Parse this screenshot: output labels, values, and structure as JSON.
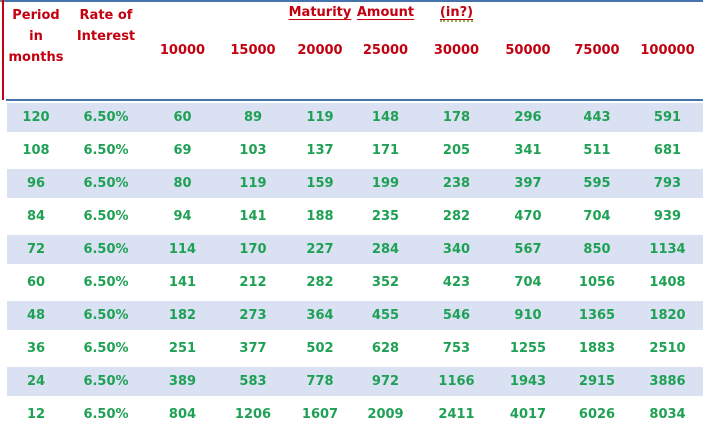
{
  "header": {
    "period_label": "Period\nin\nmonths",
    "rate_label": "Rate of\nInterest",
    "maturity_word": "Maturity",
    "amount_word": "Amount",
    "currency_word": "(in?)",
    "deposit_amounts": [
      "10000",
      "15000",
      "20000",
      "25000",
      "30000",
      "50000",
      "75000",
      "100000"
    ]
  },
  "colors": {
    "header_text_red": "#C30010",
    "data_text_green": "#1FA155",
    "stripe_blue": "#D9E1F2",
    "border_blue": "#4673AE"
  },
  "chart_data": {
    "type": "table",
    "title": "Maturity Amount (in?)",
    "columns": [
      "Period in months",
      "Rate of Interest",
      "10000",
      "15000",
      "20000",
      "25000",
      "30000",
      "50000",
      "75000",
      "100000"
    ],
    "rows": [
      {
        "period": "120",
        "rate": "6.50%",
        "values": [
          "60",
          "89",
          "119",
          "148",
          "178",
          "296",
          "443",
          "591"
        ]
      },
      {
        "period": "108",
        "rate": "6.50%",
        "values": [
          "69",
          "103",
          "137",
          "171",
          "205",
          "341",
          "511",
          "681"
        ]
      },
      {
        "period": "96",
        "rate": "6.50%",
        "values": [
          "80",
          "119",
          "159",
          "199",
          "238",
          "397",
          "595",
          "793"
        ]
      },
      {
        "period": "84",
        "rate": "6.50%",
        "values": [
          "94",
          "141",
          "188",
          "235",
          "282",
          "470",
          "704",
          "939"
        ]
      },
      {
        "period": "72",
        "rate": "6.50%",
        "values": [
          "114",
          "170",
          "227",
          "284",
          "340",
          "567",
          "850",
          "1134"
        ]
      },
      {
        "period": "60",
        "rate": "6.50%",
        "values": [
          "141",
          "212",
          "282",
          "352",
          "423",
          "704",
          "1056",
          "1408"
        ]
      },
      {
        "period": "48",
        "rate": "6.50%",
        "values": [
          "182",
          "273",
          "364",
          "455",
          "546",
          "910",
          "1365",
          "1820"
        ]
      },
      {
        "period": "36",
        "rate": "6.50%",
        "values": [
          "251",
          "377",
          "502",
          "628",
          "753",
          "1255",
          "1883",
          "2510"
        ]
      },
      {
        "period": "24",
        "rate": "6.50%",
        "values": [
          "389",
          "583",
          "778",
          "972",
          "1166",
          "1943",
          "2915",
          "3886"
        ]
      },
      {
        "period": "12",
        "rate": "6.50%",
        "values": [
          "804",
          "1206",
          "1607",
          "2009",
          "2411",
          "4017",
          "6026",
          "8034"
        ]
      }
    ]
  }
}
